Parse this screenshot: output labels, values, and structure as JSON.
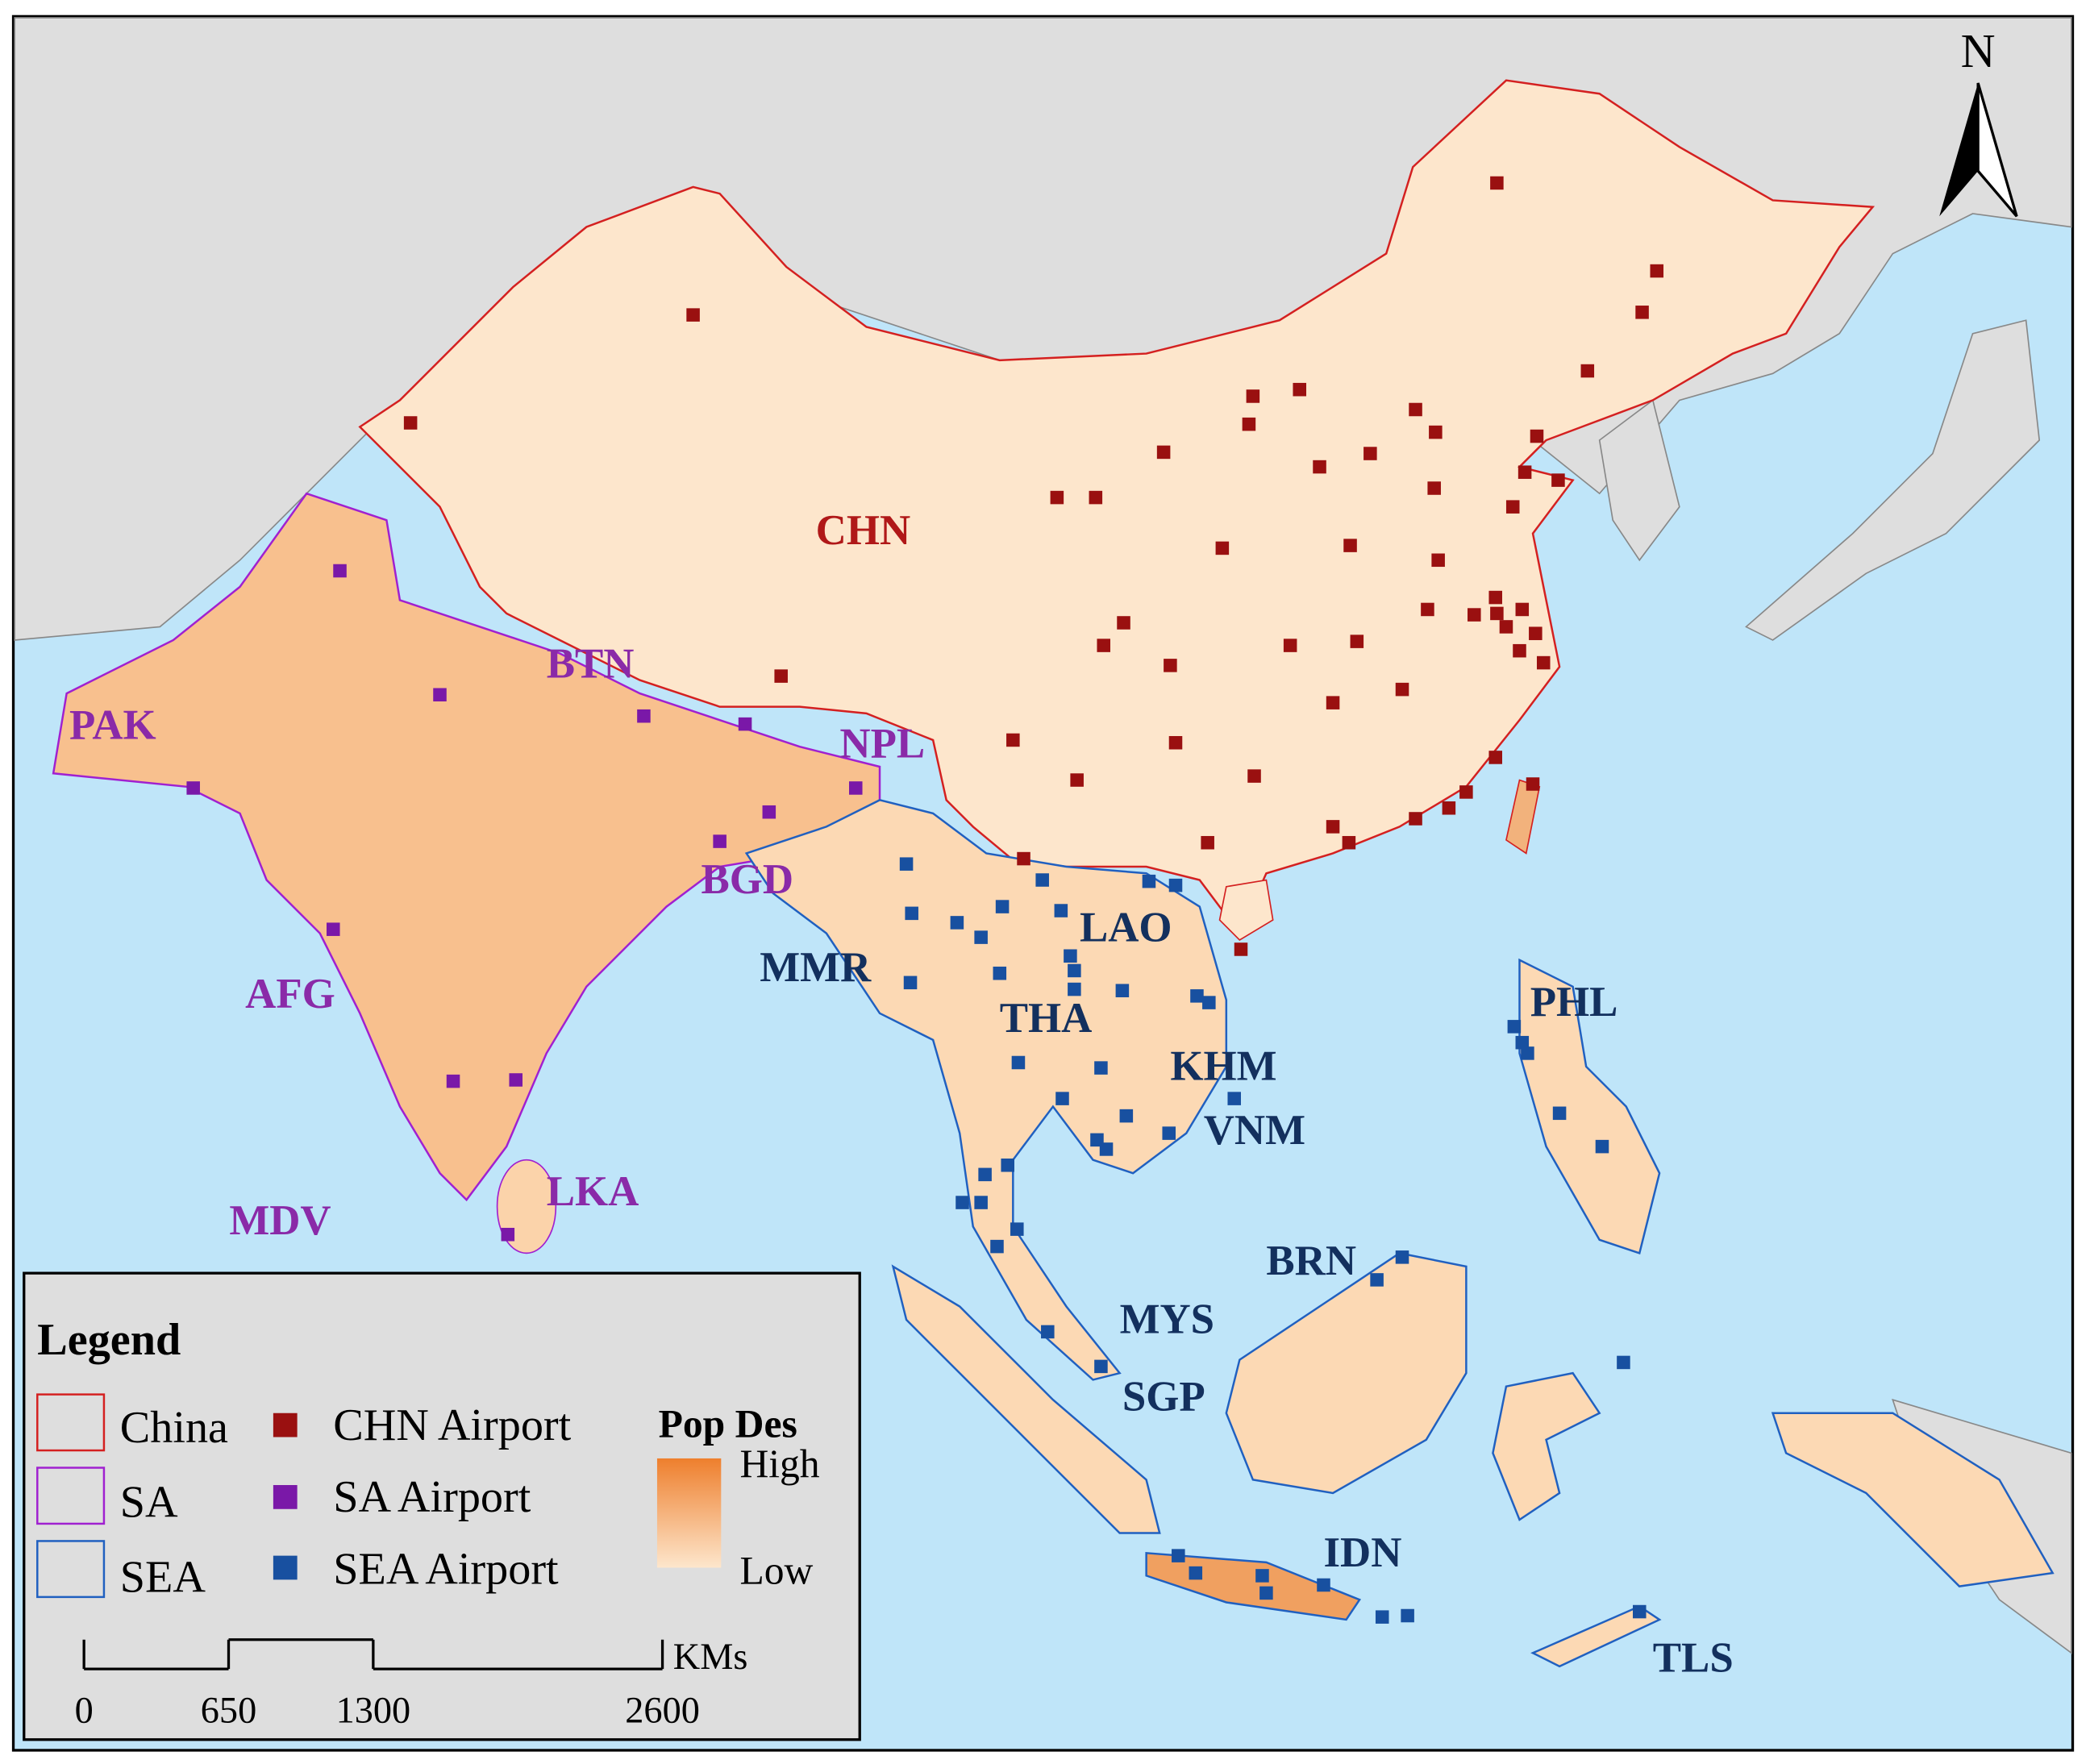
{
  "map": {
    "country_labels": [
      "CHN",
      "BTN",
      "PAK",
      "NPL",
      "BGD",
      "AFG",
      "MMR",
      "LAO",
      "THA",
      "KHM",
      "VNM",
      "PHL",
      "LKA",
      "MDV",
      "BRN",
      "MYS",
      "SGP",
      "IDN",
      "TLS"
    ],
    "north": "N",
    "legend": {
      "title": "Legend",
      "regions": [
        "China",
        "SA",
        "SEA"
      ],
      "airports": [
        "CHN Airport",
        "SA Airport",
        "SEA Airport"
      ],
      "pop_title": "Pop Des",
      "high": "High",
      "low": "Low"
    },
    "scale_bar": {
      "unit": "KMs",
      "ticks": [
        0,
        650,
        1300,
        2600
      ]
    }
  }
}
